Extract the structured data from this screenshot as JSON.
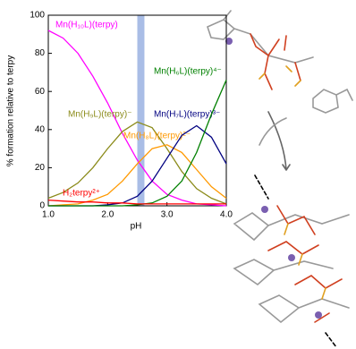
{
  "chart_data": {
    "type": "line",
    "x": [
      1.0,
      1.25,
      1.5,
      1.75,
      2.0,
      2.25,
      2.5,
      2.75,
      3.0,
      3.25,
      3.5,
      3.75,
      4.0
    ],
    "series": [
      {
        "name": "Mn(H₁₀L)(terpy)",
        "color": "#ff00ff",
        "values": [
          92,
          88,
          80,
          68,
          54,
          38,
          24,
          13,
          6,
          3,
          1,
          0.5,
          0
        ]
      },
      {
        "name": "Mn(H₉L)(terpy)⁻",
        "color": "#8b8b1a",
        "values": [
          4,
          7,
          12,
          20,
          30,
          39,
          44,
          41,
          30,
          18,
          9,
          4,
          1
        ]
      },
      {
        "name": "Mn(H₈L)(terpy)²⁻",
        "color": "#ff9900",
        "values": [
          0,
          0.5,
          1,
          3,
          6,
          13,
          22,
          30,
          32,
          28,
          19,
          10,
          4
        ]
      },
      {
        "name": "Mn(H₇L)(terpy)³⁻",
        "color": "#000080",
        "values": [
          0,
          0,
          0,
          0,
          0.5,
          1.5,
          5,
          13,
          25,
          37,
          42,
          36,
          22
        ]
      },
      {
        "name": "Mn(H₆L)(terpy)⁴⁻",
        "color": "#008000",
        "values": [
          0,
          0,
          0,
          0,
          0,
          0,
          0.5,
          1.5,
          5,
          13,
          28,
          48,
          66
        ]
      },
      {
        "name": "H₂terpy²⁺",
        "color": "#ff0000",
        "values": [
          3,
          2.5,
          2,
          2,
          1.5,
          1.5,
          1,
          1,
          1,
          1,
          1,
          1,
          1
        ]
      }
    ],
    "xlabel": "pH",
    "ylabel": "% formation relative to terpy",
    "xlim": [
      1.0,
      4.0
    ],
    "xticks": [
      {
        "value": 1,
        "label": "1.0"
      },
      {
        "value": 2,
        "label": "2.0"
      },
      {
        "value": 3,
        "label": "3.0"
      },
      {
        "value": 4,
        "label": "4.0"
      }
    ],
    "ylim": [
      0,
      100
    ],
    "yticks": [
      0,
      20,
      40,
      60,
      80,
      100
    ],
    "highlight_x": [
      2.5,
      2.62
    ],
    "highlight_color": "#a9bde6"
  }
}
